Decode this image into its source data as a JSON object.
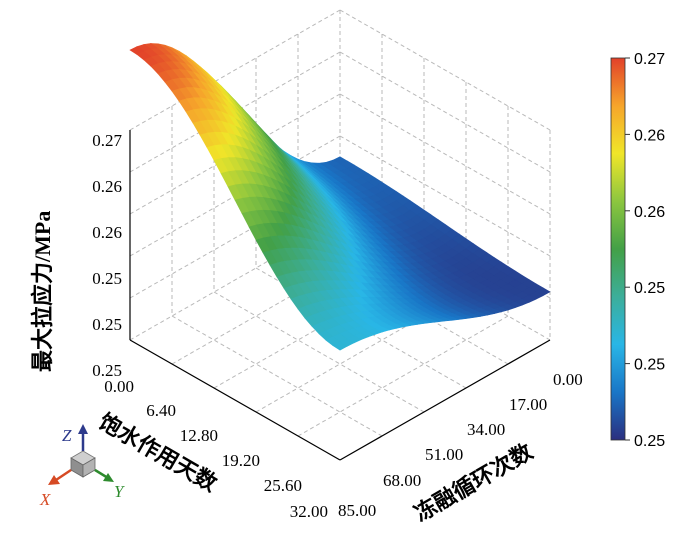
{
  "chart_data": {
    "type": "surface3d",
    "z_axis": {
      "label": "最大拉应力/MPa",
      "ticks": [
        "0.25",
        "0.25",
        "0.25",
        "0.26",
        "0.26",
        "0.27"
      ]
    },
    "x_axis": {
      "label": "饱水作用天数",
      "ticks": [
        "0.00",
        "6.40",
        "12.80",
        "19.20",
        "25.60",
        "32.00"
      ],
      "range": [
        0,
        32
      ]
    },
    "y_axis": {
      "label": "冻融循环次数",
      "ticks": [
        "0.00",
        "17.00",
        "34.00",
        "51.00",
        "68.00",
        "85.00"
      ],
      "range": [
        0,
        85
      ]
    },
    "colorbar": {
      "ticks": [
        "0.27",
        "0.26",
        "0.26",
        "0.25",
        "0.25",
        "0.25"
      ],
      "colors": [
        "#2b2f7f",
        "#1976c7",
        "#29b6e6",
        "#3cae9a",
        "#43a047",
        "#8cc63f",
        "#f0e629",
        "#f6a52b",
        "#e2412a"
      ]
    },
    "surface_corners": {
      "x0_y0": 0.2505,
      "x32_y0": 0.2492,
      "x0_y85": 0.27,
      "x32_y85": 0.2545
    },
    "z_range": [
      0.2485,
      0.27
    ],
    "orientation_triad": {
      "x": "X",
      "y": "Y",
      "z": "Z"
    }
  }
}
